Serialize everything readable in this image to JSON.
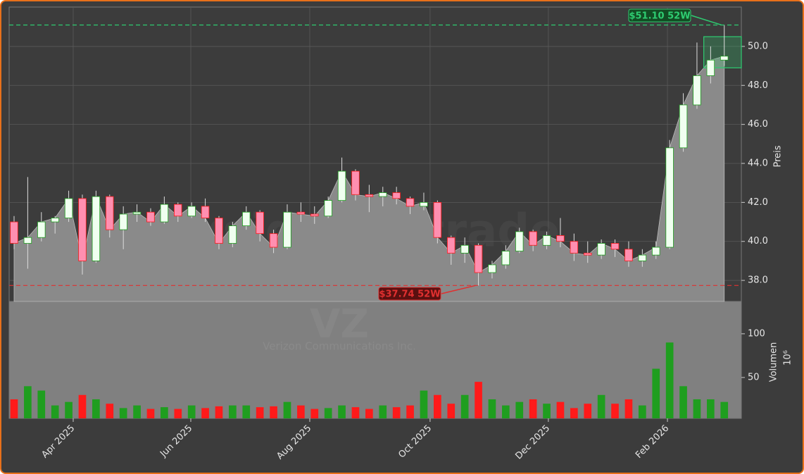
{
  "chart_data": {
    "type": "candlestick",
    "watermark": "forexsignale.trade",
    "symbol": "VZ",
    "company": "Verizon Communications Inc.",
    "y_label": "Preis",
    "volume_label": "Volumen",
    "volume_unit": "10⁶",
    "up_color": "#1f9e1f",
    "down_color": "#ff1a1a",
    "grid": true,
    "xlim": [
      -0.36,
      53.25
    ],
    "xticks": [
      {
        "value": 4.33,
        "label": "Apr 2025"
      },
      {
        "value": 12.94,
        "label": "Jun 2025"
      },
      {
        "value": 21.65,
        "label": "Aug 2025"
      },
      {
        "value": 30.46,
        "label": "Oct 2025"
      },
      {
        "value": 39.12,
        "label": "Dec 2025"
      },
      {
        "value": 47.84,
        "label": "Feb 2026"
      }
    ],
    "ylim": [
      36.92,
      52.02
    ],
    "yticks": [
      {
        "value": 38,
        "label": "38.0"
      },
      {
        "value": 40,
        "label": "40.0"
      },
      {
        "value": 42,
        "label": "42.0"
      },
      {
        "value": 44,
        "label": "44.0"
      },
      {
        "value": 46,
        "label": "46.0"
      },
      {
        "value": 48,
        "label": "48.0"
      },
      {
        "value": 50,
        "label": "50.0"
      }
    ],
    "volume_ylim": [
      3.2,
      137
    ],
    "volume_yticks": [
      50,
      100
    ],
    "open": [
      41.0,
      39.9,
      40.2,
      41.0,
      41.2,
      42.2,
      39.0,
      42.3,
      40.6,
      41.4,
      41.5,
      41.0,
      41.9,
      41.3,
      41.8,
      41.2,
      39.9,
      40.8,
      41.5,
      40.4,
      39.7,
      41.5,
      41.4,
      41.3,
      42.1,
      43.6,
      42.4,
      42.3,
      42.5,
      42.2,
      41.8,
      42.0,
      40.2,
      39.4,
      39.8,
      38.4,
      38.8,
      39.5,
      40.5,
      39.8,
      40.3,
      40.0,
      39.4,
      39.3,
      39.9,
      39.6,
      39.0,
      39.3,
      39.7,
      44.8,
      47.0,
      48.5,
      49.3
    ],
    "high": [
      41.3,
      43.3,
      41.5,
      41.3,
      42.6,
      42.4,
      42.6,
      42.4,
      41.8,
      41.9,
      41.7,
      42.3,
      42.0,
      42.0,
      42.2,
      41.3,
      41.0,
      41.8,
      41.6,
      40.6,
      41.9,
      42.0,
      41.8,
      42.3,
      44.3,
      43.7,
      42.9,
      42.8,
      42.8,
      42.3,
      42.5,
      42.1,
      40.3,
      40.2,
      39.9,
      39.0,
      39.8,
      40.7,
      40.6,
      40.5,
      41.2,
      40.4,
      40.0,
      40.1,
      40.1,
      40.0,
      39.6,
      40.0,
      45.2,
      47.6,
      50.2,
      50.0,
      51.1
    ],
    "low": [
      39.6,
      38.6,
      40.0,
      40.4,
      41.0,
      38.3,
      38.9,
      40.2,
      39.6,
      41.0,
      40.8,
      40.9,
      41.0,
      41.2,
      41.0,
      39.6,
      39.7,
      40.6,
      40.0,
      39.4,
      39.6,
      41.0,
      40.9,
      41.2,
      42.0,
      42.1,
      41.5,
      41.8,
      41.9,
      41.4,
      41.6,
      39.9,
      38.8,
      38.9,
      37.74,
      38.1,
      38.6,
      39.4,
      39.5,
      39.6,
      39.7,
      39.0,
      38.9,
      39.1,
      39.2,
      38.7,
      38.7,
      39.1,
      39.6,
      44.6,
      46.8,
      48.1,
      49.0
    ],
    "close": [
      39.9,
      40.2,
      41.0,
      41.2,
      42.2,
      39.0,
      42.3,
      40.6,
      41.4,
      41.5,
      41.0,
      41.9,
      41.3,
      41.8,
      41.2,
      39.9,
      40.8,
      41.5,
      40.4,
      39.7,
      41.5,
      41.4,
      41.3,
      42.1,
      43.6,
      42.4,
      42.3,
      42.5,
      42.2,
      41.8,
      42.0,
      40.2,
      39.4,
      39.8,
      38.4,
      38.8,
      39.5,
      40.5,
      39.8,
      40.3,
      40.0,
      39.4,
      39.3,
      39.9,
      39.6,
      39.0,
      39.3,
      39.7,
      44.8,
      47.0,
      48.5,
      49.3,
      49.5
    ],
    "volume": [
      25,
      40,
      35,
      18,
      22,
      30,
      25,
      20,
      15,
      18,
      14,
      16,
      14,
      18,
      15,
      17,
      18,
      18,
      16,
      17,
      22,
      18,
      14,
      15,
      18,
      16,
      14,
      18,
      16,
      18,
      35,
      30,
      20,
      30,
      45,
      25,
      18,
      22,
      25,
      20,
      22,
      15,
      20,
      30,
      20,
      25,
      18,
      60,
      90,
      40,
      25,
      25,
      22
    ],
    "high_52w": {
      "value": 51.1,
      "label": "$51.10 52W",
      "color": "#2ecc71"
    },
    "low_52w": {
      "value": 37.74,
      "label": "$37.74 52W",
      "color": "#e03030"
    },
    "range_box": {
      "x_start": 50.5,
      "low": 48.9,
      "high": 50.5,
      "color": "#2ecc71"
    }
  }
}
